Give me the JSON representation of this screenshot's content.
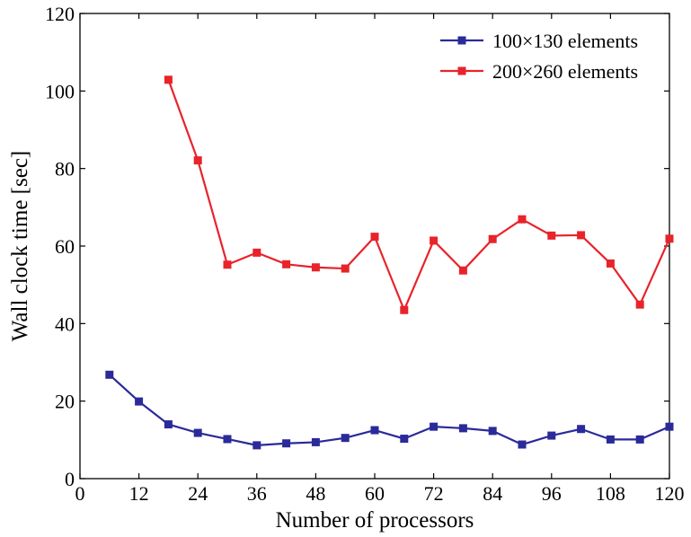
{
  "chart_data": {
    "type": "line",
    "title": "",
    "xlabel": "Number of processors",
    "ylabel": "Wall clock time [sec]",
    "xlim": [
      0,
      120
    ],
    "ylim": [
      0,
      120
    ],
    "xticks": [
      0,
      12,
      24,
      36,
      48,
      60,
      72,
      84,
      96,
      108,
      120
    ],
    "yticks": [
      0,
      20,
      40,
      60,
      80,
      100,
      120
    ],
    "grid": false,
    "legend_position": "top-right",
    "series": [
      {
        "name": "100×130 elements",
        "color": "#2a2a9a",
        "marker": "square",
        "x": [
          6,
          12,
          18,
          24,
          30,
          36,
          42,
          48,
          54,
          60,
          66,
          72,
          78,
          84,
          90,
          96,
          102,
          108,
          114,
          120
        ],
        "y": [
          26.8,
          19.9,
          14.0,
          11.8,
          10.2,
          8.6,
          9.1,
          9.4,
          10.5,
          12.5,
          10.3,
          13.4,
          13.0,
          12.3,
          8.8,
          11.1,
          12.8,
          10.1,
          10.1,
          13.4
        ]
      },
      {
        "name": "200×260 elements",
        "color": "#e8232a",
        "marker": "square",
        "x": [
          18,
          24,
          30,
          36,
          42,
          48,
          54,
          60,
          66,
          72,
          78,
          84,
          90,
          96,
          102,
          108,
          114,
          120
        ],
        "y": [
          102.9,
          82.1,
          55.2,
          58.3,
          55.3,
          54.5,
          54.2,
          62.4,
          43.5,
          61.4,
          53.7,
          61.8,
          66.9,
          62.7,
          62.8,
          55.5,
          44.9,
          61.9
        ]
      }
    ]
  }
}
